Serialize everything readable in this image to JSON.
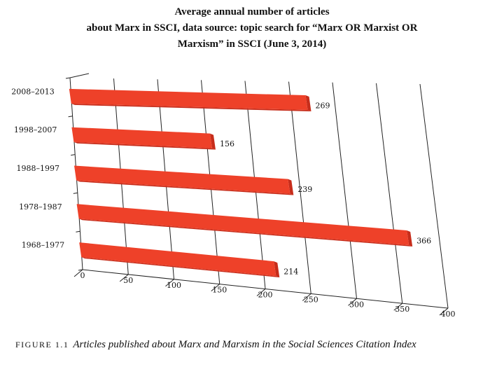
{
  "chart_data": {
    "type": "bar",
    "orientation": "horizontal",
    "perspective": "3d",
    "title_lines": [
      "Average annual number of articles",
      "about Marx in SSCI, data source: topic search for “Marx OR Marxist OR",
      "Marxism” in SSCI (June 3, 2014)"
    ],
    "categories": [
      "2008–2013",
      "1998–2007",
      "1988–1997",
      "1978–1987",
      "1968–1977"
    ],
    "values": [
      269,
      156,
      239,
      366,
      214
    ],
    "value_labels": [
      "269",
      "156",
      "239",
      "366",
      "214"
    ],
    "xlim": [
      0,
      400
    ],
    "x_ticks": [
      0,
      50,
      100,
      150,
      200,
      250,
      300,
      350,
      400
    ],
    "x_tick_labels": [
      "0",
      "50",
      "100",
      "150",
      "200",
      "250",
      "300",
      "350",
      "400"
    ],
    "grid": true,
    "bar_color": "#ee4129",
    "bar_side_color": "#c72d1b"
  },
  "caption": {
    "label": "FIGURE 1.1",
    "text": "Articles published about Marx and Marxism in the Social Sciences Citation Index"
  }
}
